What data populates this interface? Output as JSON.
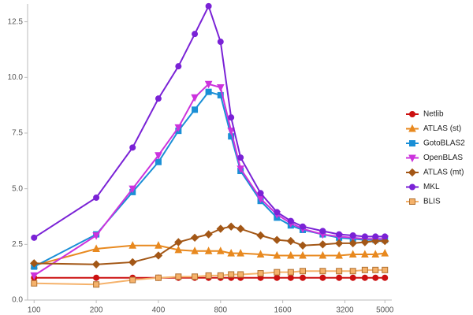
{
  "chart_data": {
    "type": "line",
    "x": [
      100,
      200,
      300,
      400,
      500,
      600,
      700,
      800,
      900,
      1000,
      1250,
      1500,
      1750,
      2000,
      2500,
      3000,
      3500,
      4000,
      4500,
      5000
    ],
    "xscale": "log",
    "xlim": [
      93,
      5400
    ],
    "xticks": [
      100,
      200,
      400,
      800,
      1600,
      3200,
      5000
    ],
    "ylim": [
      0,
      13.3
    ],
    "yticks": [
      {
        "value": 0,
        "label": "0.0"
      },
      2.5,
      {
        "value": 5,
        "label": "5.0"
      },
      7.5,
      {
        "value": 10,
        "label": "10.0"
      },
      12.5
    ],
    "legend": "right",
    "series": [
      {
        "name": "Netlib",
        "color": "#cc1111",
        "marker": "circle",
        "values": [
          1.0,
          1.0,
          1.0,
          1.0,
          1.0,
          1.0,
          1.0,
          1.0,
          1.0,
          1.0,
          1.0,
          1.0,
          1.0,
          1.0,
          1.0,
          1.0,
          1.0,
          1.0,
          1.0,
          1.0
        ]
      },
      {
        "name": "ATLAS (st)",
        "color": "#e8891f",
        "marker": "triangle",
        "values": [
          1.55,
          2.3,
          2.45,
          2.45,
          2.25,
          2.2,
          2.2,
          2.2,
          2.1,
          2.1,
          2.05,
          2.0,
          2.0,
          2.0,
          2.0,
          2.0,
          2.05,
          2.05,
          2.05,
          2.1
        ]
      },
      {
        "name": "GotoBLAS2",
        "color": "#1a8fd6",
        "marker": "square",
        "values": [
          1.5,
          2.95,
          4.85,
          6.2,
          7.6,
          8.55,
          9.35,
          9.2,
          7.35,
          5.8,
          4.45,
          3.7,
          3.35,
          3.15,
          2.95,
          2.8,
          2.75,
          2.7,
          2.7,
          2.7
        ]
      },
      {
        "name": "OpenBLAS",
        "color": "#cc33dd",
        "marker": "triangle-down",
        "values": [
          1.1,
          2.9,
          5.0,
          6.5,
          7.75,
          9.1,
          9.7,
          9.55,
          7.6,
          5.9,
          4.55,
          3.85,
          3.45,
          3.2,
          2.95,
          2.85,
          2.8,
          2.75,
          2.75,
          2.75
        ]
      },
      {
        "name": "ATLAS (mt)",
        "color": "#a35716",
        "marker": "diamond",
        "values": [
          1.65,
          1.6,
          1.7,
          2.0,
          2.6,
          2.8,
          2.95,
          3.2,
          3.3,
          3.2,
          2.9,
          2.7,
          2.65,
          2.45,
          2.5,
          2.55,
          2.55,
          2.6,
          2.65,
          2.65
        ]
      },
      {
        "name": "MKL",
        "color": "#7a22d6",
        "marker": "circle",
        "values": [
          2.8,
          4.6,
          6.85,
          9.05,
          10.5,
          11.95,
          13.2,
          11.6,
          8.2,
          6.4,
          4.8,
          3.95,
          3.55,
          3.3,
          3.1,
          2.95,
          2.9,
          2.85,
          2.85,
          2.85
        ]
      },
      {
        "name": "BLIS",
        "color": "#f5b26b",
        "marker": "square",
        "values": [
          0.75,
          0.7,
          0.9,
          1.0,
          1.05,
          1.05,
          1.1,
          1.1,
          1.15,
          1.15,
          1.2,
          1.25,
          1.25,
          1.3,
          1.3,
          1.3,
          1.3,
          1.35,
          1.35,
          1.35
        ]
      }
    ]
  }
}
